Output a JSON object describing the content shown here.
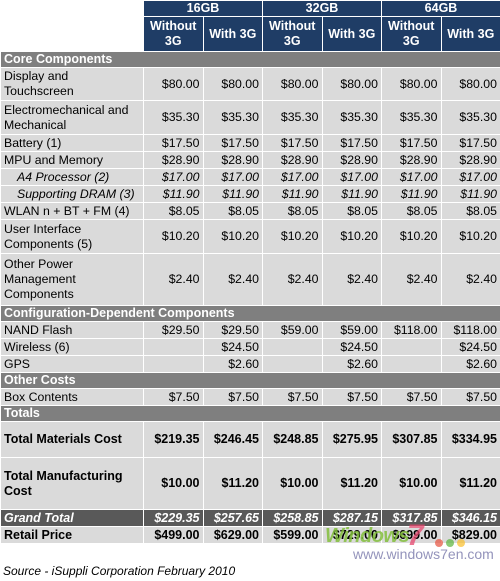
{
  "headers": {
    "storage": [
      "16GB",
      "32GB",
      "64GB"
    ],
    "variant_a": "Without 3G",
    "variant_b": "With 3G"
  },
  "sections": [
    {
      "title": "Core Components",
      "rows": [
        {
          "label": "Display and Touchscreen",
          "values": [
            "$80.00",
            "$80.00",
            "$80.00",
            "$80.00",
            "$80.00",
            "$80.00"
          ]
        },
        {
          "label": "Electromechanical and Mechanical",
          "values": [
            "$35.30",
            "$35.30",
            "$35.30",
            "$35.30",
            "$35.30",
            "$35.30"
          ]
        },
        {
          "label": "Battery (1)",
          "values": [
            "$17.50",
            "$17.50",
            "$17.50",
            "$17.50",
            "$17.50",
            "$17.50"
          ]
        },
        {
          "label": "MPU and Memory",
          "values": [
            "$28.90",
            "$28.90",
            "$28.90",
            "$28.90",
            "$28.90",
            "$28.90"
          ]
        },
        {
          "label": "A4 Processor (2)",
          "sub": true,
          "values": [
            "$17.00",
            "$17.00",
            "$17.00",
            "$17.00",
            "$17.00",
            "$17.00"
          ]
        },
        {
          "label": "Supporting DRAM (3)",
          "sub": true,
          "values": [
            "$11.90",
            "$11.90",
            "$11.90",
            "$11.90",
            "$11.90",
            "$11.90"
          ]
        },
        {
          "label": "WLAN n + BT + FM (4)",
          "values": [
            "$8.05",
            "$8.05",
            "$8.05",
            "$8.05",
            "$8.05",
            "$8.05"
          ]
        },
        {
          "label": "User Interface Components (5)",
          "values": [
            "$10.20",
            "$10.20",
            "$10.20",
            "$10.20",
            "$10.20",
            "$10.20"
          ]
        },
        {
          "label": "Other Power Management Components",
          "values": [
            "$2.40",
            "$2.40",
            "$2.40",
            "$2.40",
            "$2.40",
            "$2.40"
          ]
        }
      ]
    },
    {
      "title": "Configuration-Dependent Components",
      "rows": [
        {
          "label": "NAND Flash",
          "values": [
            "$29.50",
            "$29.50",
            "$59.00",
            "$59.00",
            "$118.00",
            "$118.00"
          ]
        },
        {
          "label": "Wireless (6)",
          "values": [
            "",
            "$24.50",
            "",
            "$24.50",
            "",
            "$24.50"
          ]
        },
        {
          "label": "GPS",
          "values": [
            "",
            "$2.60",
            "",
            "$2.60",
            "",
            "$2.60"
          ]
        }
      ]
    },
    {
      "title": "Other Costs",
      "rows": [
        {
          "label": "Box Contents",
          "values": [
            "$7.50",
            "$7.50",
            "$7.50",
            "$7.50",
            "$7.50",
            "$7.50"
          ]
        }
      ]
    },
    {
      "title": "Totals",
      "rows": [
        {
          "label": "Total Materials Cost",
          "big": true,
          "values": [
            "$219.35",
            "$246.45",
            "$248.85",
            "$275.95",
            "$307.85",
            "$334.95"
          ]
        },
        {
          "label": "Total Manufacturing Cost",
          "big": true,
          "values": [
            "$10.00",
            "$11.20",
            "$10.00",
            "$11.20",
            "$10.00",
            "$11.20"
          ]
        }
      ]
    }
  ],
  "grand_total": {
    "label": "Grand Total",
    "values": [
      "$229.35",
      "$257.65",
      "$258.85",
      "$287.15",
      "$317.85",
      "$346.15"
    ]
  },
  "retail_price": {
    "label": "Retail Price",
    "values": [
      "$499.00",
      "$629.00",
      "$599.00",
      "$729.00",
      "$699.00",
      "$829.00"
    ]
  },
  "source": "Source - iSuppli Corporation February 2010",
  "watermark": {
    "main": "Windows",
    "seven": "7",
    "sub": "www.windows7en.com"
  }
}
